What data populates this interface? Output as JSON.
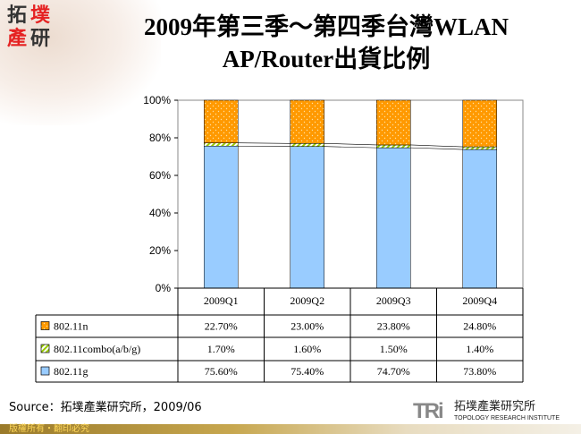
{
  "title_line1": "2009年第三季～第四季台灣WLAN",
  "title_line2": "AP/Router出貨比例",
  "logo_text": "拓墣產研",
  "source": "Source：拓墣產業研究所，2009/06",
  "footer": "版權所有・翻印必究",
  "brand": {
    "mark": "TRi",
    "name": "拓墣產業研究所",
    "sub": "TOPOLOGY RESEARCH INSTITUTE"
  },
  "chart_data": {
    "type": "bar",
    "stacked": true,
    "percent": true,
    "categories": [
      "2009Q1",
      "2009Q2",
      "2009Q3",
      "2009Q4"
    ],
    "series": [
      {
        "name": "802.11g",
        "values": [
          75.6,
          75.4,
          74.7,
          73.8
        ],
        "labels": [
          "75.60%",
          "75.40%",
          "74.70%",
          "73.80%"
        ],
        "color": "#99ccff"
      },
      {
        "name": "802.11combo(a/b/g)",
        "values": [
          1.7,
          1.6,
          1.5,
          1.4
        ],
        "labels": [
          "1.70%",
          "1.60%",
          "1.50%",
          "1.40%"
        ],
        "color": "#99cc00"
      },
      {
        "name": "802.11n",
        "values": [
          22.7,
          23.0,
          23.8,
          24.8
        ],
        "labels": [
          "22.70%",
          "23.00%",
          "23.80%",
          "24.80%"
        ],
        "color": "#ff9900"
      }
    ],
    "yticks": [
      "0%",
      "20%",
      "40%",
      "60%",
      "80%",
      "100%"
    ],
    "ylim": [
      0,
      100
    ],
    "grid": false,
    "legend": "data-table"
  }
}
